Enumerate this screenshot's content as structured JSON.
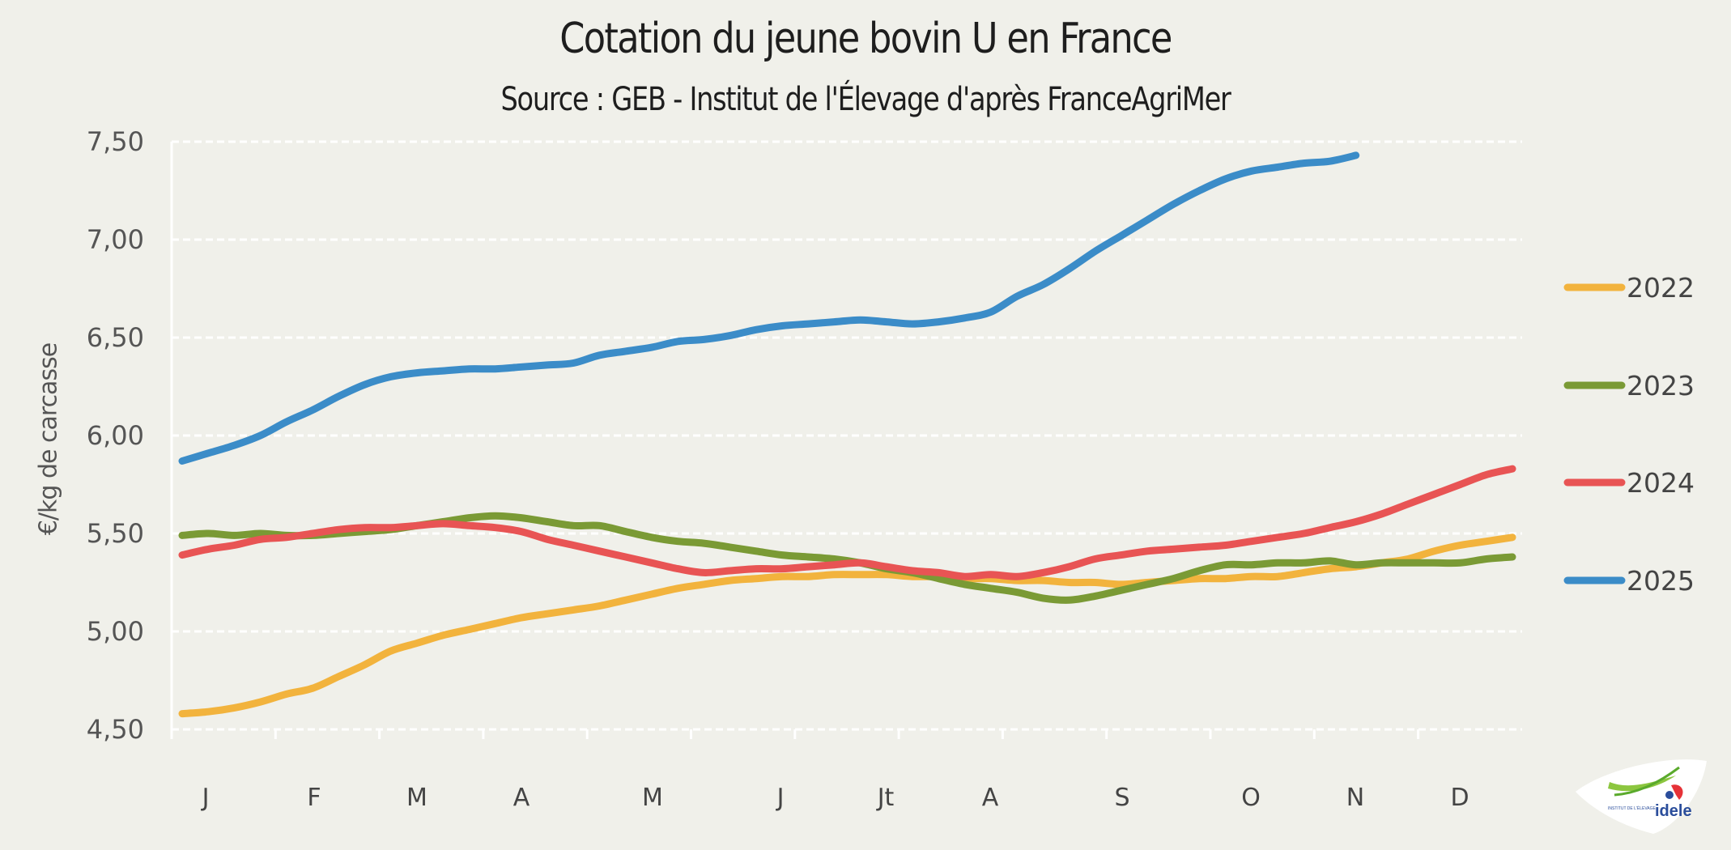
{
  "chart_data": {
    "type": "line",
    "title": "Cotation du jeune bovin U en France",
    "subtitle": "Source : GEB - Institut de l'Élevage d'après FranceAgriMer",
    "xlabel": "",
    "ylabel": "€/kg de carcasse",
    "ylim": [
      4.5,
      7.5
    ],
    "yticks": [
      "4,50",
      "5,00",
      "5,50",
      "6,00",
      "6,50",
      "7,00",
      "7,50"
    ],
    "ytick_values": [
      4.5,
      5.0,
      5.5,
      6.0,
      6.5,
      7.0,
      7.5
    ],
    "xlim": [
      1,
      52
    ],
    "x_unit": "week",
    "month_labels": [
      "J",
      "F",
      "M",
      "A",
      "M",
      "J",
      "Jt",
      "A",
      "S",
      "O",
      "N",
      "D"
    ],
    "grid": true,
    "legend_position": "right",
    "series": [
      {
        "name": "2022",
        "color": "#f2b33d",
        "values": [
          4.58,
          4.59,
          4.61,
          4.64,
          4.68,
          4.71,
          4.77,
          4.83,
          4.9,
          4.94,
          4.98,
          5.01,
          5.04,
          5.07,
          5.09,
          5.11,
          5.13,
          5.16,
          5.19,
          5.22,
          5.24,
          5.26,
          5.27,
          5.28,
          5.28,
          5.29,
          5.29,
          5.29,
          5.28,
          5.28,
          5.27,
          5.27,
          5.26,
          5.26,
          5.25,
          5.25,
          5.24,
          5.25,
          5.26,
          5.27,
          5.27,
          5.28,
          5.28,
          5.3,
          5.32,
          5.33,
          5.35,
          5.37,
          5.41,
          5.44,
          5.46,
          5.48
        ]
      },
      {
        "name": "2023",
        "color": "#7a9a35",
        "values": [
          5.49,
          5.5,
          5.49,
          5.5,
          5.49,
          5.49,
          5.5,
          5.51,
          5.52,
          5.54,
          5.56,
          5.58,
          5.59,
          5.58,
          5.56,
          5.54,
          5.54,
          5.51,
          5.48,
          5.46,
          5.45,
          5.43,
          5.41,
          5.39,
          5.38,
          5.37,
          5.35,
          5.32,
          5.3,
          5.27,
          5.24,
          5.22,
          5.2,
          5.17,
          5.16,
          5.18,
          5.21,
          5.24,
          5.27,
          5.31,
          5.34,
          5.34,
          5.35,
          5.35,
          5.36,
          5.34,
          5.35,
          5.35,
          5.35,
          5.35,
          5.37,
          5.38
        ]
      },
      {
        "name": "2024",
        "color": "#e85454",
        "values": [
          5.39,
          5.42,
          5.44,
          5.47,
          5.48,
          5.5,
          5.52,
          5.53,
          5.53,
          5.54,
          5.55,
          5.54,
          5.53,
          5.51,
          5.47,
          5.44,
          5.41,
          5.38,
          5.35,
          5.32,
          5.3,
          5.31,
          5.32,
          5.32,
          5.33,
          5.34,
          5.35,
          5.33,
          5.31,
          5.3,
          5.28,
          5.29,
          5.28,
          5.3,
          5.33,
          5.37,
          5.39,
          5.41,
          5.42,
          5.43,
          5.44,
          5.46,
          5.48,
          5.5,
          5.53,
          5.56,
          5.6,
          5.65,
          5.7,
          5.75,
          5.8,
          5.83
        ]
      },
      {
        "name": "2025",
        "color": "#3b8cc8",
        "values": [
          5.87,
          5.91,
          5.95,
          6.0,
          6.07,
          6.13,
          6.2,
          6.26,
          6.3,
          6.32,
          6.33,
          6.34,
          6.34,
          6.35,
          6.36,
          6.37,
          6.41,
          6.43,
          6.45,
          6.48,
          6.49,
          6.51,
          6.54,
          6.56,
          6.57,
          6.58,
          6.59,
          6.58,
          6.57,
          6.58,
          6.6,
          6.63,
          6.71,
          6.77,
          6.85,
          6.94,
          7.02,
          7.1,
          7.18,
          7.25,
          7.31,
          7.35,
          7.37,
          7.39,
          7.4,
          7.43
        ]
      }
    ]
  },
  "logo": {
    "text": "idele",
    "small_text": "INSTITUT DE L'ÉLEVAGE"
  }
}
